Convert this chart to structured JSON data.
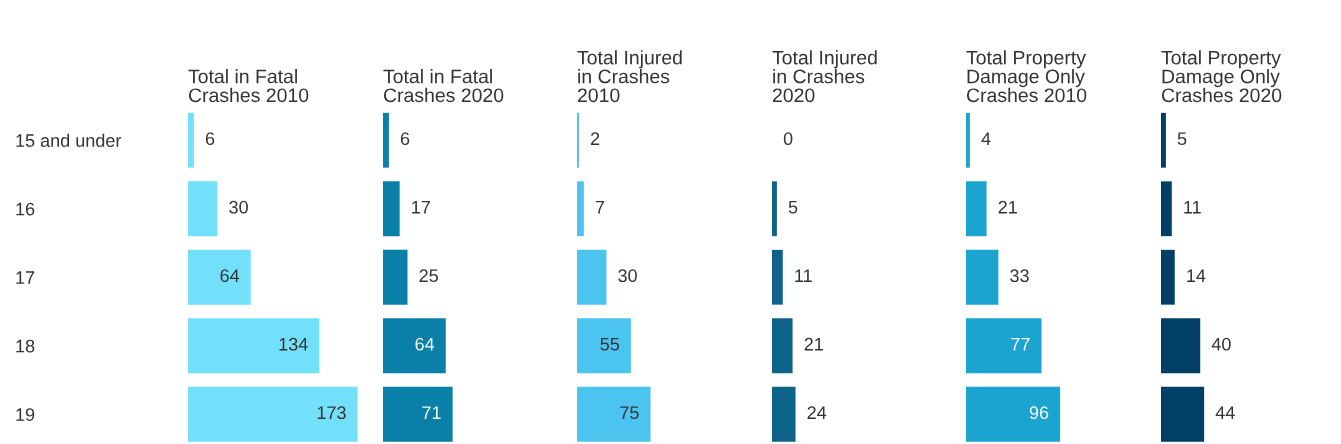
{
  "chart_data": [
    {
      "type": "bar",
      "orientation": "horizontal",
      "title": "Total in Fatal\nCrashes 2010",
      "categories": [
        "15 and under",
        "16",
        "17",
        "18",
        "19"
      ],
      "values": [
        6,
        30,
        64,
        134,
        173
      ],
      "color": "#73e0fb",
      "data_labels": true,
      "tick_labels": "y"
    },
    {
      "type": "bar",
      "orientation": "horizontal",
      "title": "Total in Fatal\nCrashes 2020",
      "values": [
        6,
        17,
        25,
        64,
        71
      ],
      "color": "#0a80a8",
      "data_labels": true,
      "tick_labels": false
    },
    {
      "type": "bar",
      "orientation": "horizontal",
      "title": "Total Injured\nin Crashes\n2010",
      "values": [
        2,
        7,
        30,
        55,
        75
      ],
      "color": "#4cc4f0",
      "data_labels": true,
      "tick_labels": false
    },
    {
      "type": "bar",
      "orientation": "horizontal",
      "title": "Total Injured\nin Crashes\n2020",
      "values": [
        0,
        5,
        11,
        21,
        24
      ],
      "color": "#0e6389",
      "data_labels": true,
      "tick_labels": false
    },
    {
      "type": "bar",
      "orientation": "horizontal",
      "title": "Total Property\nDamage Only\nCrashes 2010",
      "values": [
        4,
        21,
        33,
        77,
        96
      ],
      "color": "#1ca4d0",
      "data_labels": true,
      "tick_labels": false
    },
    {
      "type": "bar",
      "orientation": "horizontal",
      "title": "Total Property\nDamage Only\nCrashes 2020",
      "values": [
        5,
        11,
        14,
        40,
        44
      ],
      "color": "#003f66",
      "data_labels": true,
      "tick_labels": false
    }
  ]
}
